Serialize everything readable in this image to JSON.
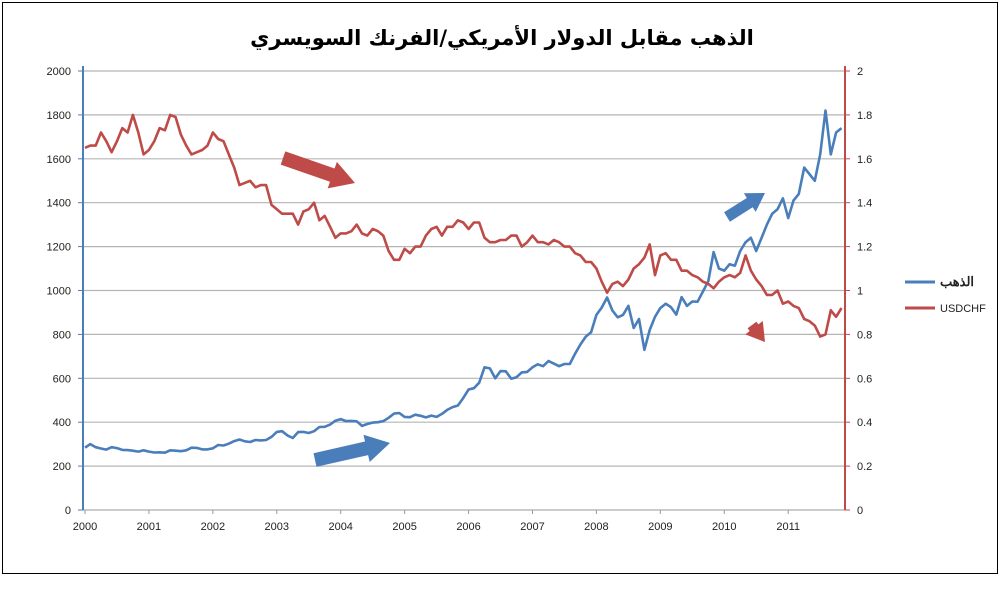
{
  "chart_data": {
    "type": "line",
    "title": "الذهب مقابل الدولار الأمريكي/الفرنك السويسري",
    "x_start": "2000-01",
    "x_frequency": "monthly",
    "x_ticks": [
      "2000",
      "2001",
      "2002",
      "2003",
      "2004",
      "2005",
      "2006",
      "2007",
      "2008",
      "2009",
      "2010",
      "2011"
    ],
    "y_left": {
      "range": [
        0,
        2000
      ],
      "ticks": [
        0,
        200,
        400,
        600,
        800,
        1000,
        1200,
        1400,
        1600,
        1800,
        2000
      ],
      "color": "#4a7ebb"
    },
    "y_right": {
      "range": [
        0,
        2
      ],
      "ticks": [
        "0",
        "0.2",
        "0.4",
        "0.6",
        "0.8",
        "1",
        "1.2",
        "1.4",
        "1.6",
        "1.8",
        "2"
      ],
      "color": "#be4b48"
    },
    "grid": true,
    "legend_placement": "right",
    "series": [
      {
        "name": "الذهب",
        "axis": "left",
        "color": "#4a7ebb",
        "values": [
          284,
          300,
          286,
          280,
          275,
          286,
          282,
          274,
          273,
          270,
          266,
          272,
          266,
          262,
          263,
          261,
          272,
          270,
          268,
          272,
          284,
          283,
          276,
          276,
          281,
          296,
          294,
          302,
          314,
          321,
          313,
          310,
          319,
          317,
          319,
          333,
          356,
          359,
          340,
          328,
          355,
          356,
          351,
          359,
          378,
          379,
          389,
          407,
          414,
          405,
          406,
          404,
          383,
          392,
          398,
          400,
          405,
          420,
          439,
          442,
          424,
          423,
          434,
          429,
          422,
          430,
          424,
          438,
          456,
          469,
          476,
          510,
          549,
          555,
          580,
          650,
          645,
          600,
          633,
          632,
          598,
          605,
          627,
          629,
          650,
          664,
          655,
          679,
          667,
          655,
          665,
          665,
          712,
          754,
          790,
          810,
          889,
          922,
          968,
          909,
          878,
          889,
          930,
          829,
          870,
          730,
          820,
          880,
          920,
          940,
          924,
          890,
          970,
          930,
          950,
          949,
          996,
          1043,
          1175,
          1100,
          1090,
          1120,
          1113,
          1180,
          1220,
          1240,
          1180,
          1240,
          1300,
          1350,
          1370,
          1420,
          1330,
          1410,
          1440,
          1560,
          1530,
          1500,
          1620,
          1820,
          1620,
          1720,
          1740
        ]
      },
      {
        "name": "USDCHF",
        "axis": "right",
        "color": "#be4b48",
        "values": [
          1.65,
          1.66,
          1.66,
          1.72,
          1.68,
          1.63,
          1.68,
          1.74,
          1.72,
          1.8,
          1.72,
          1.62,
          1.64,
          1.68,
          1.74,
          1.73,
          1.8,
          1.79,
          1.71,
          1.66,
          1.62,
          1.63,
          1.64,
          1.66,
          1.72,
          1.69,
          1.68,
          1.62,
          1.56,
          1.48,
          1.49,
          1.5,
          1.47,
          1.48,
          1.48,
          1.39,
          1.37,
          1.35,
          1.35,
          1.35,
          1.3,
          1.36,
          1.37,
          1.4,
          1.32,
          1.34,
          1.29,
          1.24,
          1.26,
          1.26,
          1.27,
          1.3,
          1.26,
          1.25,
          1.28,
          1.27,
          1.25,
          1.18,
          1.14,
          1.14,
          1.19,
          1.17,
          1.2,
          1.2,
          1.25,
          1.28,
          1.29,
          1.25,
          1.29,
          1.29,
          1.32,
          1.31,
          1.28,
          1.31,
          1.31,
          1.24,
          1.22,
          1.22,
          1.23,
          1.23,
          1.25,
          1.25,
          1.2,
          1.22,
          1.25,
          1.22,
          1.22,
          1.21,
          1.23,
          1.22,
          1.2,
          1.2,
          1.17,
          1.16,
          1.13,
          1.13,
          1.1,
          1.04,
          0.99,
          1.03,
          1.04,
          1.02,
          1.05,
          1.1,
          1.12,
          1.15,
          1.21,
          1.07,
          1.16,
          1.17,
          1.14,
          1.14,
          1.09,
          1.09,
          1.07,
          1.06,
          1.04,
          1.03,
          1.01,
          1.04,
          1.06,
          1.07,
          1.06,
          1.08,
          1.16,
          1.09,
          1.05,
          1.02,
          0.98,
          0.98,
          1.0,
          0.94,
          0.95,
          0.93,
          0.92,
          0.87,
          0.86,
          0.84,
          0.79,
          0.8,
          0.91,
          0.88,
          0.92
        ]
      }
    ],
    "annotations": [
      {
        "shape": "arrow",
        "direction": "down-right",
        "color": "#be4b48",
        "near_year": "2003"
      },
      {
        "shape": "arrow",
        "direction": "up-right",
        "color": "#4a7ebb",
        "near_year": "2004"
      },
      {
        "shape": "arrow",
        "direction": "up-right",
        "color": "#4a7ebb",
        "near_year": "2010"
      },
      {
        "shape": "arrow",
        "direction": "down-right",
        "color": "#be4b48",
        "near_year": "2010"
      }
    ]
  }
}
